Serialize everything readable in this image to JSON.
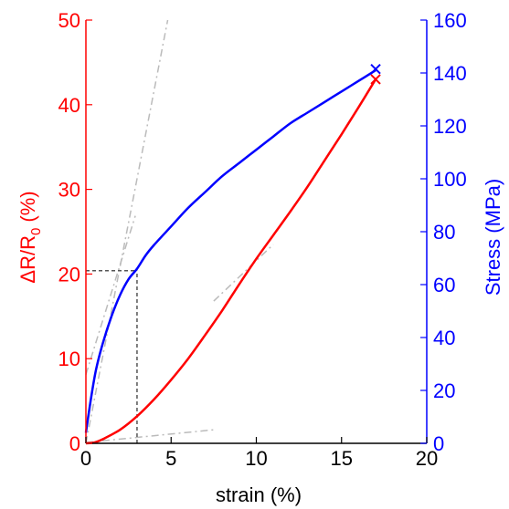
{
  "chart_data": {
    "type": "line",
    "xlabel": "strain (%)",
    "xlim": [
      0,
      20
    ],
    "xticks": [
      0,
      5,
      10,
      15,
      20
    ],
    "y_left": {
      "label_main": "ΔR/R",
      "label_sub": "0",
      "label_unit": " (%)",
      "lim": [
        0,
        50
      ],
      "ticks": [
        0,
        10,
        20,
        30,
        40,
        50
      ],
      "color": "#ff0000"
    },
    "y_right": {
      "label": "Stress (MPa)",
      "lim": [
        0,
        160
      ],
      "ticks": [
        0,
        20,
        40,
        60,
        80,
        100,
        120,
        140,
        160
      ],
      "color": "#0000ff"
    },
    "series": [
      {
        "axis": "right",
        "color": "#0000ff",
        "x": [
          0,
          0.3,
          0.6,
          1.0,
          1.5,
          2.0,
          2.5,
          3.0,
          3.5,
          4.0,
          5.0,
          6.0,
          7.0,
          8.0,
          9.0,
          10.0,
          11.0,
          12.0,
          13.0,
          14.0,
          15.0,
          16.0,
          17.0
        ],
        "y": [
          4,
          17,
          28,
          38,
          48,
          56,
          62,
          66,
          71,
          75,
          82,
          89,
          95,
          101,
          106,
          111,
          116,
          121,
          125,
          129,
          133,
          137,
          141
        ]
      },
      {
        "axis": "left",
        "color": "#ff0000",
        "x": [
          0,
          0.5,
          1.0,
          2.0,
          3.0,
          4.0,
          5.0,
          6.0,
          7.0,
          8.0,
          9.0,
          10.0,
          11.0,
          12.0,
          13.0,
          14.0,
          15.0,
          16.0,
          17.0
        ],
        "y": [
          0,
          0.1,
          0.5,
          1.6,
          3.2,
          5.2,
          7.5,
          10.0,
          12.8,
          15.7,
          18.8,
          21.8,
          24.6,
          27.4,
          30.3,
          33.4,
          36.5,
          39.7,
          43.0
        ]
      }
    ],
    "end_markers": [
      {
        "axis": "right",
        "x": 17,
        "y": 141.5,
        "color": "#0000ff"
      },
      {
        "axis": "left",
        "x": 17,
        "y": 43,
        "color": "#ff0000"
      }
    ],
    "construction_lines": {
      "color": "#bbbbbb",
      "dashed_grey": [
        {
          "axis": "left",
          "x": [
            0,
            4.8
          ],
          "y": [
            0,
            50
          ]
        },
        {
          "axis": "right",
          "x": [
            0,
            2.9
          ],
          "y": [
            26,
            86
          ]
        },
        {
          "axis": "left",
          "x": [
            0,
            7.5
          ],
          "y": [
            0.1,
            1.6
          ]
        },
        {
          "axis": "left",
          "x": [
            7.5,
            11
          ],
          "y": [
            16.8,
            23.5
          ]
        }
      ],
      "dotted_dark": {
        "color": "#555555",
        "horizontal": {
          "axis": "left",
          "x": [
            0,
            3.0
          ],
          "y": 20.4
        },
        "vertical": {
          "axis": "left",
          "x": 3.0,
          "y": [
            0,
            20.4
          ]
        }
      }
    }
  }
}
